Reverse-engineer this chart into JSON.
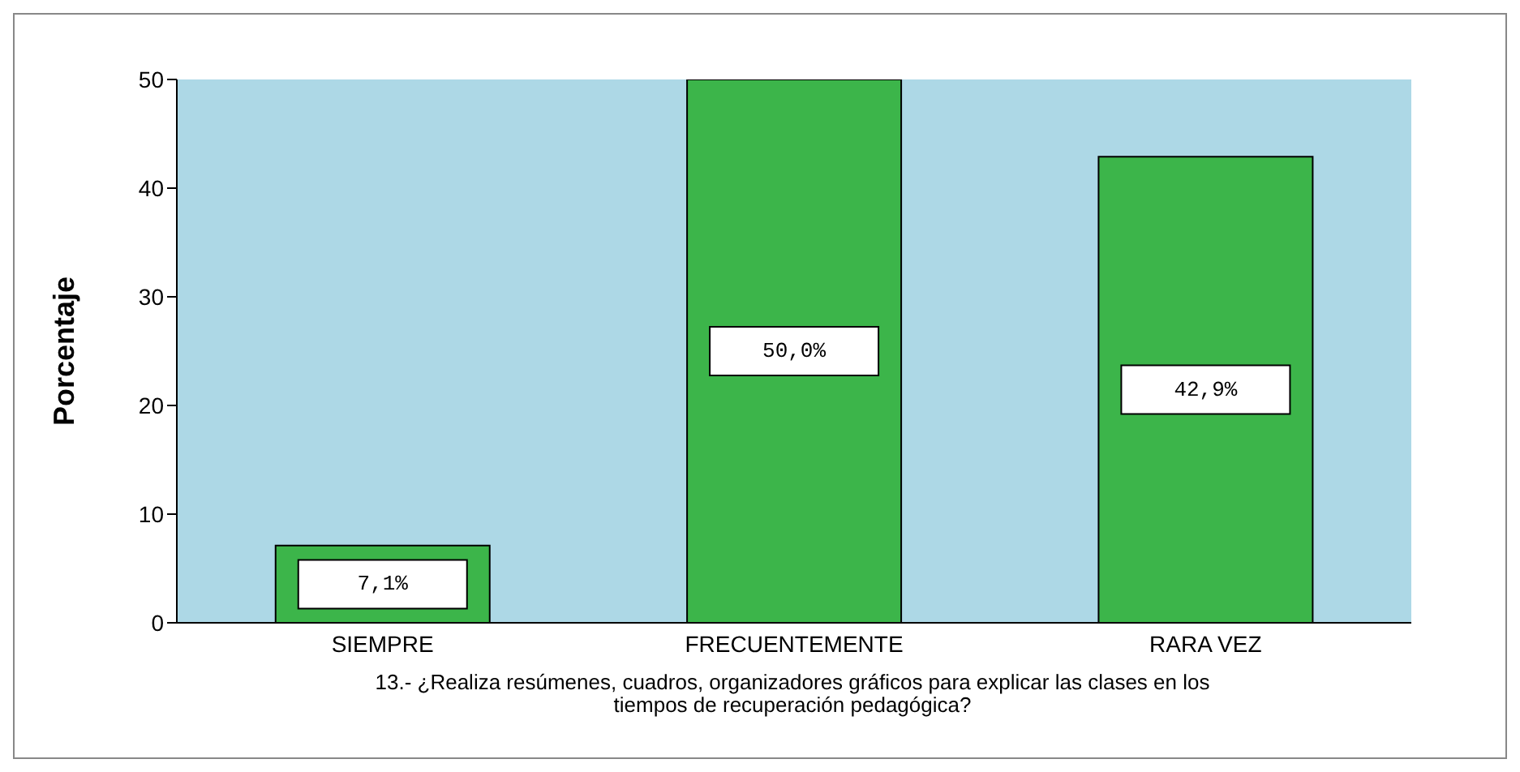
{
  "chart_data": {
    "type": "bar",
    "ylabel": "Porcentaje",
    "xlabel": "13.- ¿Realiza resúmenes, cuadros, organizadores gráficos para explicar las clases en los tiempos de recuperación pedagógica?",
    "categories": [
      "SIEMPRE",
      "FRECUENTEMENTE",
      "RARA VEZ"
    ],
    "values": [
      7.1,
      50.0,
      42.9
    ],
    "value_labels": [
      "7,1%",
      "50,0%",
      "42,9%"
    ],
    "color": "#3cb54a",
    "ylim": [
      0,
      50
    ],
    "yticks": [
      0,
      10,
      20,
      30,
      40,
      50
    ],
    "grid": false
  }
}
